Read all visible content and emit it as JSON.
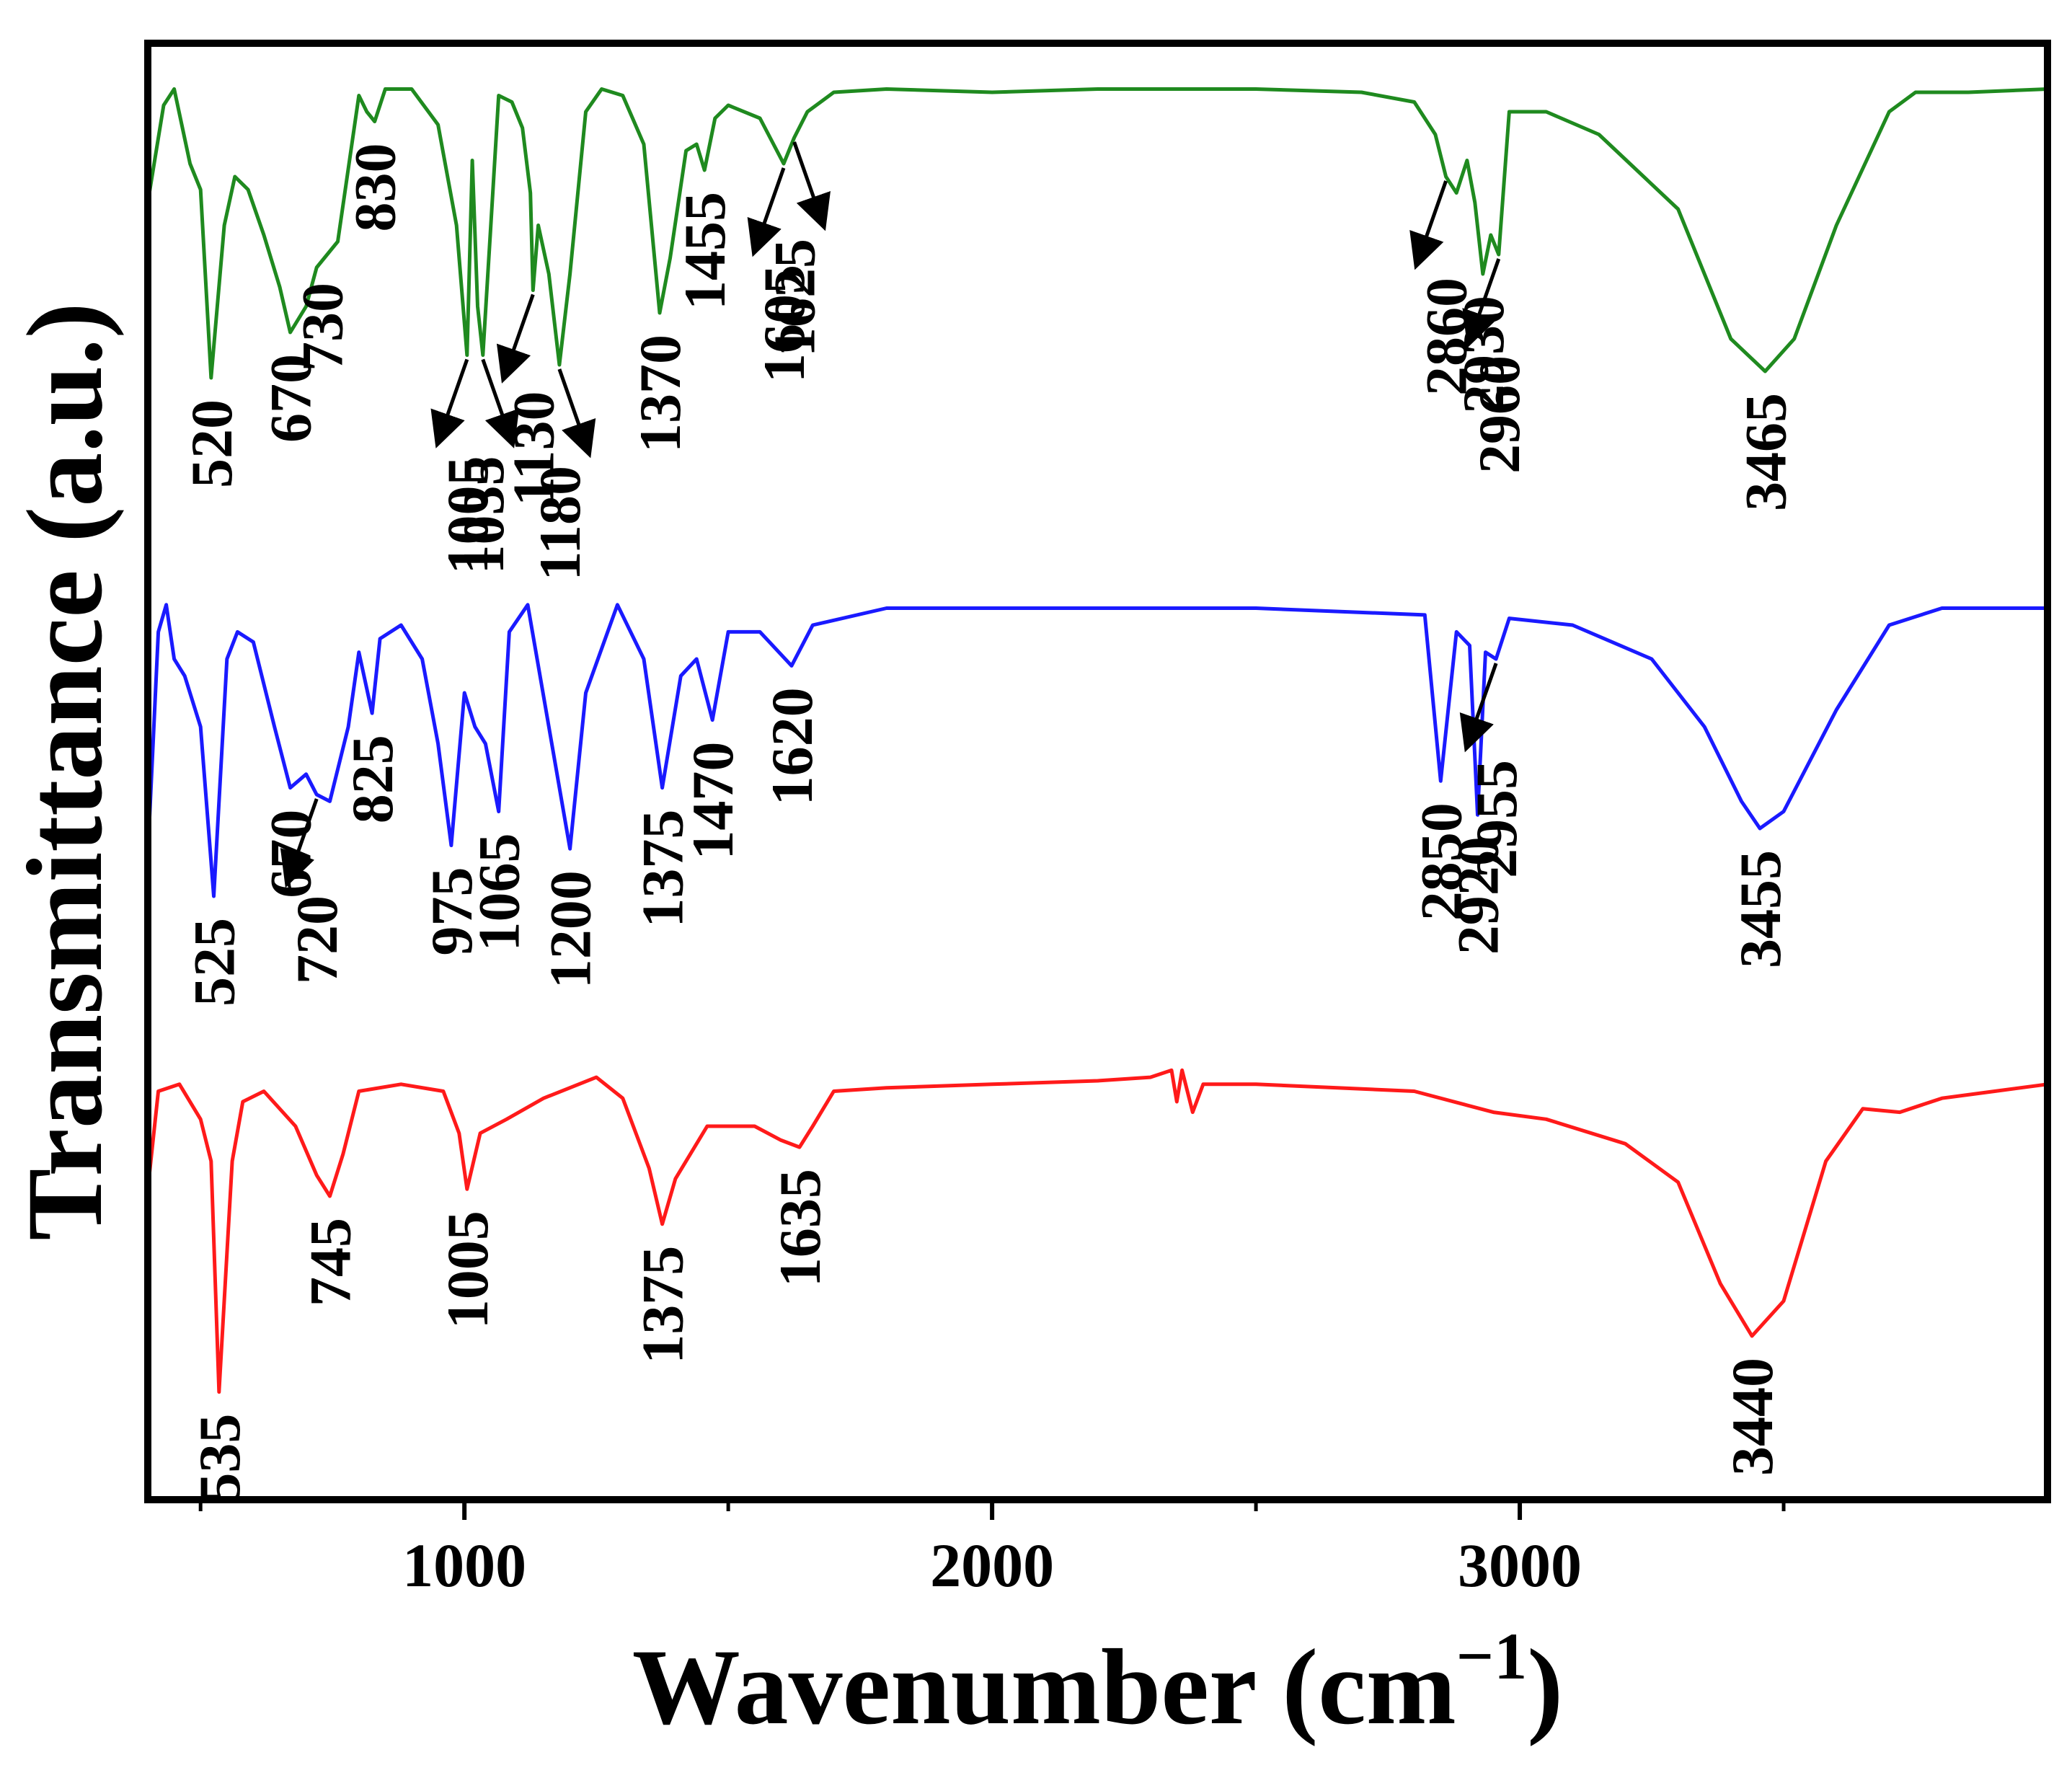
{
  "chart_data": {
    "type": "line",
    "title": "",
    "xlabel": "Wavenumber (cm",
    "xlabel_sup": "−1",
    "xlabel_close": ")",
    "ylabel": "Transmittance (a.u.)",
    "xlim": [
      400,
      4000
    ],
    "x_ticks": [
      {
        "value": 1000,
        "label": "1000"
      },
      {
        "value": 2000,
        "label": "2000"
      },
      {
        "value": 3000,
        "label": "3000"
      }
    ],
    "x_minor_ticks": [
      500,
      1500,
      2500,
      3500
    ],
    "grid": false,
    "series": [
      {
        "name": "top",
        "color": "#1f8a1f",
        "baseline": 0.95,
        "points": [
          [
            400,
            0.62
          ],
          [
            430,
            0.92
          ],
          [
            450,
            0.97
          ],
          [
            480,
            0.74
          ],
          [
            500,
            0.66
          ],
          [
            520,
            0.08
          ],
          [
            545,
            0.55
          ],
          [
            565,
            0.7
          ],
          [
            590,
            0.66
          ],
          [
            620,
            0.52
          ],
          [
            650,
            0.36
          ],
          [
            670,
            0.22
          ],
          [
            700,
            0.3
          ],
          [
            720,
            0.42
          ],
          [
            730,
            0.44
          ],
          [
            760,
            0.5
          ],
          [
            800,
            0.95
          ],
          [
            815,
            0.9
          ],
          [
            830,
            0.87
          ],
          [
            850,
            0.97
          ],
          [
            900,
            0.97
          ],
          [
            950,
            0.86
          ],
          [
            985,
            0.55
          ],
          [
            1005,
            0.15
          ],
          [
            1015,
            0.75
          ],
          [
            1025,
            0.3
          ],
          [
            1035,
            0.15
          ],
          [
            1050,
            0.55
          ],
          [
            1065,
            0.95
          ],
          [
            1090,
            0.93
          ],
          [
            1110,
            0.85
          ],
          [
            1125,
            0.65
          ],
          [
            1130,
            0.35
          ],
          [
            1140,
            0.55
          ],
          [
            1160,
            0.4
          ],
          [
            1180,
            0.12
          ],
          [
            1200,
            0.4
          ],
          [
            1230,
            0.9
          ],
          [
            1260,
            0.97
          ],
          [
            1300,
            0.95
          ],
          [
            1340,
            0.8
          ],
          [
            1370,
            0.28
          ],
          [
            1390,
            0.45
          ],
          [
            1420,
            0.78
          ],
          [
            1440,
            0.8
          ],
          [
            1455,
            0.72
          ],
          [
            1475,
            0.88
          ],
          [
            1500,
            0.92
          ],
          [
            1560,
            0.88
          ],
          [
            1605,
            0.74
          ],
          [
            1625,
            0.82
          ],
          [
            1650,
            0.9
          ],
          [
            1700,
            0.96
          ],
          [
            1800,
            0.97
          ],
          [
            2000,
            0.96
          ],
          [
            2200,
            0.97
          ],
          [
            2500,
            0.97
          ],
          [
            2700,
            0.96
          ],
          [
            2800,
            0.93
          ],
          [
            2840,
            0.83
          ],
          [
            2860,
            0.7
          ],
          [
            2880,
            0.65
          ],
          [
            2900,
            0.75
          ],
          [
            2915,
            0.62
          ],
          [
            2930,
            0.4
          ],
          [
            2945,
            0.52
          ],
          [
            2960,
            0.46
          ],
          [
            2980,
            0.9
          ],
          [
            3050,
            0.9
          ],
          [
            3150,
            0.83
          ],
          [
            3300,
            0.6
          ],
          [
            3400,
            0.2
          ],
          [
            3465,
            0.1
          ],
          [
            3520,
            0.2
          ],
          [
            3600,
            0.55
          ],
          [
            3700,
            0.9
          ],
          [
            3750,
            0.96
          ],
          [
            3850,
            0.96
          ],
          [
            4000,
            0.97
          ]
        ]
      },
      {
        "name": "middle",
        "color": "#1a1aff",
        "baseline": 0.5,
        "points": [
          [
            400,
            0.22
          ],
          [
            420,
            0.88
          ],
          [
            435,
            0.96
          ],
          [
            450,
            0.8
          ],
          [
            470,
            0.75
          ],
          [
            500,
            0.6
          ],
          [
            525,
            0.1
          ],
          [
            550,
            0.8
          ],
          [
            570,
            0.88
          ],
          [
            600,
            0.85
          ],
          [
            640,
            0.6
          ],
          [
            670,
            0.42
          ],
          [
            700,
            0.46
          ],
          [
            720,
            0.4
          ],
          [
            745,
            0.38
          ],
          [
            780,
            0.6
          ],
          [
            800,
            0.82
          ],
          [
            825,
            0.64
          ],
          [
            840,
            0.86
          ],
          [
            880,
            0.9
          ],
          [
            920,
            0.8
          ],
          [
            950,
            0.55
          ],
          [
            975,
            0.25
          ],
          [
            1000,
            0.7
          ],
          [
            1020,
            0.6
          ],
          [
            1040,
            0.55
          ],
          [
            1065,
            0.35
          ],
          [
            1085,
            0.88
          ],
          [
            1120,
            0.96
          ],
          [
            1160,
            0.6
          ],
          [
            1200,
            0.24
          ],
          [
            1230,
            0.7
          ],
          [
            1290,
            0.96
          ],
          [
            1340,
            0.8
          ],
          [
            1375,
            0.42
          ],
          [
            1410,
            0.75
          ],
          [
            1440,
            0.8
          ],
          [
            1470,
            0.62
          ],
          [
            1500,
            0.88
          ],
          [
            1560,
            0.88
          ],
          [
            1620,
            0.78
          ],
          [
            1660,
            0.9
          ],
          [
            1800,
            0.95
          ],
          [
            2000,
            0.95
          ],
          [
            2200,
            0.95
          ],
          [
            2500,
            0.95
          ],
          [
            2820,
            0.93
          ],
          [
            2850,
            0.44
          ],
          [
            2880,
            0.88
          ],
          [
            2905,
            0.84
          ],
          [
            2920,
            0.34
          ],
          [
            2935,
            0.82
          ],
          [
            2955,
            0.8
          ],
          [
            2980,
            0.92
          ],
          [
            3100,
            0.9
          ],
          [
            3250,
            0.8
          ],
          [
            3350,
            0.6
          ],
          [
            3420,
            0.38
          ],
          [
            3455,
            0.3
          ],
          [
            3500,
            0.35
          ],
          [
            3600,
            0.65
          ],
          [
            3700,
            0.9
          ],
          [
            3800,
            0.95
          ],
          [
            4000,
            0.95
          ]
        ]
      },
      {
        "name": "bottom",
        "color": "#ff1a1a",
        "baseline": 0.0,
        "points": [
          [
            400,
            0.62
          ],
          [
            420,
            0.9
          ],
          [
            460,
            0.92
          ],
          [
            500,
            0.82
          ],
          [
            520,
            0.7
          ],
          [
            535,
            0.04
          ],
          [
            560,
            0.7
          ],
          [
            580,
            0.87
          ],
          [
            620,
            0.9
          ],
          [
            680,
            0.8
          ],
          [
            720,
            0.66
          ],
          [
            745,
            0.6
          ],
          [
            770,
            0.72
          ],
          [
            800,
            0.9
          ],
          [
            880,
            0.92
          ],
          [
            960,
            0.9
          ],
          [
            990,
            0.78
          ],
          [
            1005,
            0.62
          ],
          [
            1030,
            0.78
          ],
          [
            1080,
            0.82
          ],
          [
            1150,
            0.88
          ],
          [
            1250,
            0.94
          ],
          [
            1300,
            0.88
          ],
          [
            1350,
            0.68
          ],
          [
            1375,
            0.52
          ],
          [
            1400,
            0.65
          ],
          [
            1460,
            0.8
          ],
          [
            1550,
            0.8
          ],
          [
            1600,
            0.76
          ],
          [
            1635,
            0.74
          ],
          [
            1660,
            0.8
          ],
          [
            1700,
            0.9
          ],
          [
            1800,
            0.91
          ],
          [
            2000,
            0.92
          ],
          [
            2200,
            0.93
          ],
          [
            2300,
            0.94
          ],
          [
            2340,
            0.96
          ],
          [
            2350,
            0.87
          ],
          [
            2360,
            0.96
          ],
          [
            2380,
            0.84
          ],
          [
            2400,
            0.92
          ],
          [
            2500,
            0.92
          ],
          [
            2800,
            0.9
          ],
          [
            2900,
            0.86
          ],
          [
            2950,
            0.84
          ],
          [
            3050,
            0.82
          ],
          [
            3200,
            0.75
          ],
          [
            3300,
            0.64
          ],
          [
            3380,
            0.35
          ],
          [
            3440,
            0.2
          ],
          [
            3500,
            0.3
          ],
          [
            3580,
            0.7
          ],
          [
            3650,
            0.85
          ],
          [
            3720,
            0.84
          ],
          [
            3800,
            0.88
          ],
          [
            3900,
            0.9
          ],
          [
            4000,
            0.92
          ]
        ]
      }
    ],
    "annotations": [
      {
        "series": "top",
        "label": "520",
        "x": 520,
        "arrow": false
      },
      {
        "series": "top",
        "label": "670",
        "x": 670,
        "arrow": false
      },
      {
        "series": "top",
        "label": "730",
        "x": 730,
        "arrow": false
      },
      {
        "series": "top",
        "label": "830",
        "x": 830,
        "arrow": false
      },
      {
        "series": "top",
        "label": "1005",
        "x": 1005,
        "arrow": true
      },
      {
        "series": "top",
        "label": "1035",
        "x": 1035,
        "arrow": true
      },
      {
        "series": "top",
        "label": "1130",
        "x": 1130,
        "arrow": true
      },
      {
        "series": "top",
        "label": "1180",
        "x": 1180,
        "arrow": true
      },
      {
        "series": "top",
        "label": "1370",
        "x": 1370,
        "arrow": false
      },
      {
        "series": "top",
        "label": "1455",
        "x": 1455,
        "arrow": false
      },
      {
        "series": "top",
        "label": "1605",
        "x": 1605,
        "arrow": true
      },
      {
        "series": "top",
        "label": "1625",
        "x": 1625,
        "arrow": true
      },
      {
        "series": "top",
        "label": "2860",
        "x": 2860,
        "arrow": true
      },
      {
        "series": "top",
        "label": "2930",
        "x": 2930,
        "arrow": false
      },
      {
        "series": "top",
        "label": "2960",
        "x": 2960,
        "arrow": true
      },
      {
        "series": "top",
        "label": "3465",
        "x": 3465,
        "arrow": false
      },
      {
        "series": "middle",
        "label": "525",
        "x": 525,
        "arrow": false
      },
      {
        "series": "middle",
        "label": "670",
        "x": 670,
        "arrow": false
      },
      {
        "series": "middle",
        "label": "720",
        "x": 720,
        "arrow": true
      },
      {
        "series": "middle",
        "label": "825",
        "x": 825,
        "arrow": false
      },
      {
        "series": "middle",
        "label": "975",
        "x": 975,
        "arrow": false
      },
      {
        "series": "middle",
        "label": "1065",
        "x": 1065,
        "arrow": false
      },
      {
        "series": "middle",
        "label": "1200",
        "x": 1200,
        "arrow": false
      },
      {
        "series": "middle",
        "label": "1375",
        "x": 1375,
        "arrow": false
      },
      {
        "series": "middle",
        "label": "1470",
        "x": 1470,
        "arrow": false
      },
      {
        "series": "middle",
        "label": "1620",
        "x": 1620,
        "arrow": false
      },
      {
        "series": "middle",
        "label": "2850",
        "x": 2850,
        "arrow": false
      },
      {
        "series": "middle",
        "label": "2920",
        "x": 2920,
        "arrow": false
      },
      {
        "series": "middle",
        "label": "2955",
        "x": 2955,
        "arrow": true
      },
      {
        "series": "middle",
        "label": "3455",
        "x": 3455,
        "arrow": false
      },
      {
        "series": "bottom",
        "label": "535",
        "x": 535,
        "arrow": false
      },
      {
        "series": "bottom",
        "label": "745",
        "x": 745,
        "arrow": false
      },
      {
        "series": "bottom",
        "label": "1005",
        "x": 1005,
        "arrow": false
      },
      {
        "series": "bottom",
        "label": "1375",
        "x": 1375,
        "arrow": false
      },
      {
        "series": "bottom",
        "label": "1635",
        "x": 1635,
        "arrow": false
      },
      {
        "series": "bottom",
        "label": "3440",
        "x": 3440,
        "arrow": false
      }
    ]
  }
}
